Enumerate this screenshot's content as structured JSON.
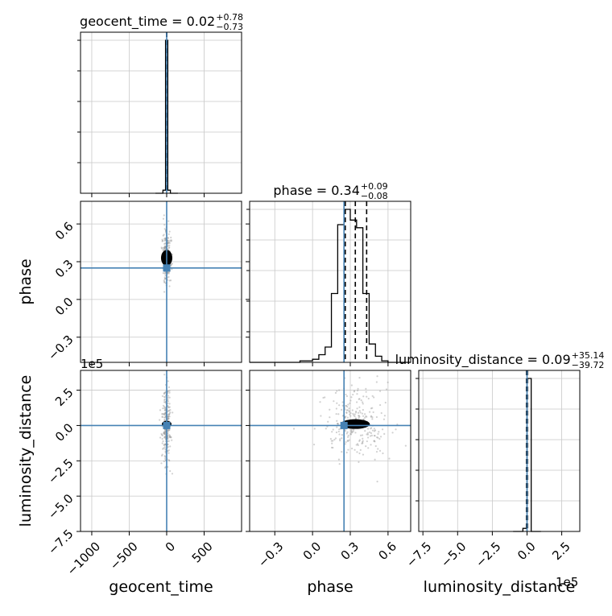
{
  "chart_data": {
    "type": "corner",
    "truth_color": "#4682b4",
    "parameters": [
      {
        "name": "geocent_time",
        "title": "geocent_time",
        "median": "0.02",
        "plus": "+0.78",
        "minus": "−0.73",
        "range": [
          -1150,
          1000
        ],
        "truth": 0.0
      },
      {
        "name": "phase",
        "title": "phase",
        "median": "0.34",
        "plus": "+0.09",
        "minus": "−0.08",
        "range": [
          -0.5,
          0.78
        ],
        "truth": 0.25
      },
      {
        "name": "luminosity_distance",
        "title": "luminosity_distance",
        "median": "0.09",
        "plus": "+35.14",
        "minus": "−39.72",
        "range": [
          -75,
          38
        ],
        "truth": 0.0,
        "offset_label": "1e5"
      }
    ],
    "diagonal": [
      {
        "param": "geocent_time",
        "bin_edges": [
          -150,
          -50,
          -15,
          15,
          50,
          150
        ],
        "counts": [
          0,
          0.02,
          1.0,
          0.02,
          0
        ],
        "quantiles": [
          -0.71,
          0.02,
          0.8
        ],
        "x_ticks": [
          "−1000",
          "−500",
          "0",
          "500"
        ],
        "x_tick_values": [
          -1000,
          -500,
          0,
          500
        ]
      },
      {
        "param": "phase",
        "bin_edges": [
          -0.5,
          -0.1,
          0.0,
          0.05,
          0.1,
          0.15,
          0.2,
          0.25,
          0.3,
          0.35,
          0.4,
          0.45,
          0.5,
          0.55,
          0.6,
          0.78
        ],
        "counts": [
          0,
          0.01,
          0.02,
          0.05,
          0.1,
          0.45,
          0.9,
          1.0,
          0.93,
          0.88,
          0.45,
          0.12,
          0.04,
          0.01,
          0
        ],
        "quantiles": [
          0.26,
          0.34,
          0.43
        ],
        "x_ticks": [
          "−0.3",
          "0.0",
          "0.3",
          "0.6"
        ],
        "x_tick_values": [
          -0.3,
          0.0,
          0.3,
          0.6
        ]
      },
      {
        "param": "luminosity_distance",
        "bin_edges": [
          -10,
          -3,
          0,
          3,
          10
        ],
        "counts": [
          0,
          0.02,
          1.0,
          0
        ],
        "quantiles": [
          -0.4,
          0.0,
          0.35
        ],
        "x_ticks": [
          "−7.5",
          "−5.0",
          "−2.5",
          "0.0",
          "2.5"
        ],
        "x_tick_values": [
          -7.5,
          -5.0,
          -2.5,
          0.0,
          2.5
        ],
        "offset_label": "1e5"
      }
    ],
    "off_diagonal": [
      {
        "x": "geocent_time",
        "y": "phase",
        "center": [
          0,
          0.33
        ],
        "spread": [
          18,
          0.06
        ],
        "truth": [
          0,
          0.25
        ]
      },
      {
        "x": "geocent_time",
        "y": "luminosity_distance",
        "center": [
          0,
          0.1
        ],
        "spread": [
          18,
          0.9
        ],
        "truth": [
          0,
          0
        ]
      },
      {
        "x": "phase",
        "y": "luminosity_distance",
        "center": [
          0.34,
          0.1
        ],
        "spread": [
          0.08,
          0.8
        ],
        "truth": [
          0.25,
          0
        ]
      }
    ],
    "y_ticks": {
      "phase": [
        "0.6",
        "0.3",
        "0.0",
        "−0.3"
      ],
      "phase_values": [
        0.6,
        0.3,
        0.0,
        -0.3
      ],
      "luminosity_distance": [
        "2.5",
        "0.0",
        "−2.5",
        "−5.0",
        "−7.5"
      ],
      "luminosity_distance_values": [
        2.5,
        0.0,
        -2.5,
        -5.0,
        -7.5
      ]
    },
    "axis_labels": {
      "x": [
        "geocent_time",
        "phase",
        "luminosity_distance"
      ],
      "y": [
        "phase",
        "luminosity_distance"
      ]
    },
    "grid": true
  }
}
